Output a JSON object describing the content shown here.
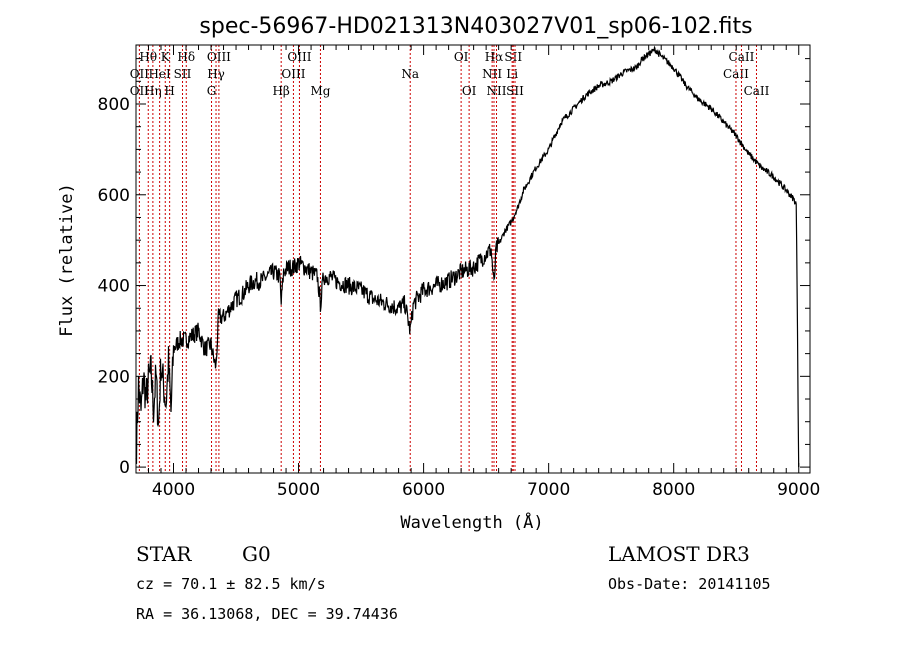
{
  "chart_data": {
    "type": "line",
    "title": "spec-56967-HD021313N403027V01_sp06-102.fits",
    "xlabel": "Wavelength (Å)",
    "ylabel": "Flux (relative)",
    "xlim": [
      3700,
      9090
    ],
    "ylim": [
      -13,
      930
    ],
    "xticks": [
      4000,
      5000,
      6000,
      7000,
      8000,
      9000
    ],
    "yticks": [
      0,
      200,
      400,
      600,
      800
    ],
    "grid": false,
    "line_color": "#000000",
    "marker_color": "#cc0000",
    "series": [
      {
        "name": "spectrum",
        "x": [
          3700,
          3720,
          3740,
          3760,
          3780,
          3800,
          3820,
          3840,
          3860,
          3880,
          3900,
          3920,
          3940,
          3960,
          3980,
          4000,
          4050,
          4100,
          4150,
          4200,
          4250,
          4300,
          4320,
          4340,
          4360,
          4400,
          4450,
          4500,
          4550,
          4600,
          4650,
          4700,
          4750,
          4800,
          4850,
          4861,
          4880,
          4920,
          4960,
          5000,
          5050,
          5100,
          5150,
          5175,
          5200,
          5250,
          5300,
          5400,
          5500,
          5600,
          5700,
          5800,
          5850,
          5893,
          5920,
          6000,
          6100,
          6200,
          6300,
          6400,
          6500,
          6540,
          6563,
          6580,
          6600,
          6650,
          6700,
          6750,
          6800,
          6900,
          7000,
          7100,
          7200,
          7300,
          7400,
          7500,
          7600,
          7700,
          7750,
          7800,
          7850,
          7900,
          8000,
          8100,
          8200,
          8300,
          8400,
          8500,
          8600,
          8700,
          8800,
          8900,
          8960,
          8980,
          8990,
          8995,
          9000
        ],
        "y": [
          20,
          180,
          120,
          200,
          150,
          190,
          210,
          130,
          200,
          90,
          230,
          180,
          140,
          230,
          120,
          260,
          280,
          280,
          290,
          300,
          260,
          270,
          240,
          220,
          330,
          330,
          350,
          370,
          380,
          400,
          410,
          410,
          420,
          430,
          420,
          360,
          430,
          440,
          440,
          450,
          440,
          430,
          420,
          360,
          420,
          420,
          410,
          400,
          390,
          370,
          360,
          350,
          360,
          300,
          360,
          390,
          400,
          410,
          430,
          440,
          470,
          480,
          400,
          480,
          490,
          520,
          540,
          570,
          610,
          660,
          700,
          760,
          790,
          820,
          840,
          850,
          870,
          880,
          900,
          910,
          920,
          905,
          880,
          840,
          810,
          790,
          760,
          730,
          690,
          660,
          640,
          610,
          590,
          580,
          300,
          130,
          0
        ]
      }
    ],
    "lines": [
      {
        "name": "OII",
        "wave": 3727,
        "row": 2
      },
      {
        "name": "OII",
        "wave": 3727,
        "row": 3
      },
      {
        "name": "Hθ",
        "wave": 3798,
        "row": 1
      },
      {
        "name": "Hη",
        "wave": 3835,
        "row": 3
      },
      {
        "name": "HeI",
        "wave": 3889,
        "row": 2
      },
      {
        "name": "K",
        "wave": 3934,
        "row": 1
      },
      {
        "name": "H",
        "wave": 3969,
        "row": 3
      },
      {
        "name": "SII",
        "wave": 4072,
        "row": 2
      },
      {
        "name": "Hδ",
        "wave": 4102,
        "row": 1
      },
      {
        "name": "G",
        "wave": 4304,
        "row": 3
      },
      {
        "name": "Hγ",
        "wave": 4340,
        "row": 2
      },
      {
        "name": "OIII",
        "wave": 4363,
        "row": 1
      },
      {
        "name": "Hβ",
        "wave": 4861,
        "row": 3
      },
      {
        "name": "OIII",
        "wave": 4959,
        "row": 2
      },
      {
        "name": "OIII",
        "wave": 5007,
        "row": 1
      },
      {
        "name": "Mg",
        "wave": 5175,
        "row": 3
      },
      {
        "name": "Na",
        "wave": 5893,
        "row": 2
      },
      {
        "name": "OI",
        "wave": 6300,
        "row": 1
      },
      {
        "name": "OI",
        "wave": 6364,
        "row": 3
      },
      {
        "name": "NII",
        "wave": 6548,
        "row": 2
      },
      {
        "name": "Hα",
        "wave": 6563,
        "row": 1
      },
      {
        "name": "NII",
        "wave": 6583,
        "row": 3
      },
      {
        "name": "Li",
        "wave": 6708,
        "row": 2
      },
      {
        "name": "SII",
        "wave": 6717,
        "row": 1
      },
      {
        "name": "SII",
        "wave": 6731,
        "row": 3
      },
      {
        "name": "CaII",
        "wave": 8498,
        "row": 2
      },
      {
        "name": "CaII",
        "wave": 8542,
        "row": 1
      },
      {
        "name": "CaII",
        "wave": 8662,
        "row": 3
      }
    ]
  },
  "footer": {
    "object_type": "STAR",
    "subclass": "G0",
    "survey": "LAMOST DR3",
    "redshift": "cz = 70.1 ± 82.5 km/s",
    "obs_date": "Obs-Date: 20141105",
    "coords": "RA =  36.13068, DEC =  39.74436"
  }
}
